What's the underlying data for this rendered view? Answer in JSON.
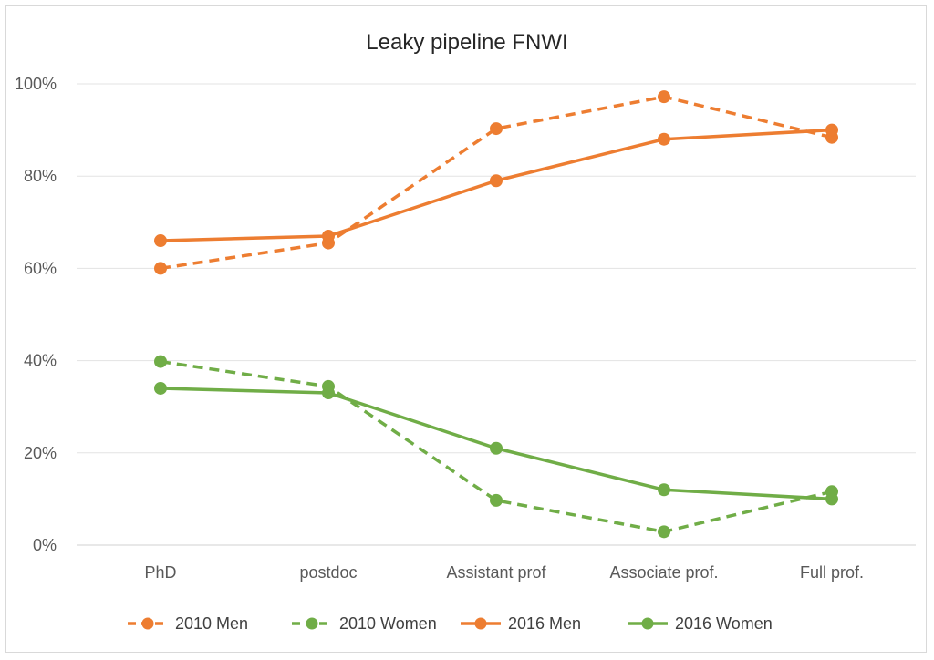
{
  "chart_data": {
    "type": "line",
    "title": "Leaky pipeline FNWI",
    "categories": [
      "PhD",
      "postdoc",
      "Assistant prof",
      "Associate prof.",
      "Full prof."
    ],
    "y_ticks": [
      "0%",
      "20%",
      "40%",
      "60%",
      "80%",
      "100%"
    ],
    "ylim": [
      0,
      100
    ],
    "grid": true,
    "legend_position": "bottom",
    "series": [
      {
        "name": "2010 Men",
        "values": [
          60,
          65.5,
          90.3,
          97.2,
          88.4
        ],
        "color": "#ED7D31",
        "dashed": true
      },
      {
        "name": "2010 Women",
        "values": [
          39.8,
          34.4,
          9.7,
          2.9,
          11.6
        ],
        "color": "#70AD47",
        "dashed": true
      },
      {
        "name": "2016 Men",
        "values": [
          66,
          67,
          79,
          88,
          90
        ],
        "color": "#ED7D31",
        "dashed": false
      },
      {
        "name": "2016 Women",
        "values": [
          34,
          33,
          21,
          12,
          10
        ],
        "color": "#70AD47",
        "dashed": false
      }
    ]
  }
}
